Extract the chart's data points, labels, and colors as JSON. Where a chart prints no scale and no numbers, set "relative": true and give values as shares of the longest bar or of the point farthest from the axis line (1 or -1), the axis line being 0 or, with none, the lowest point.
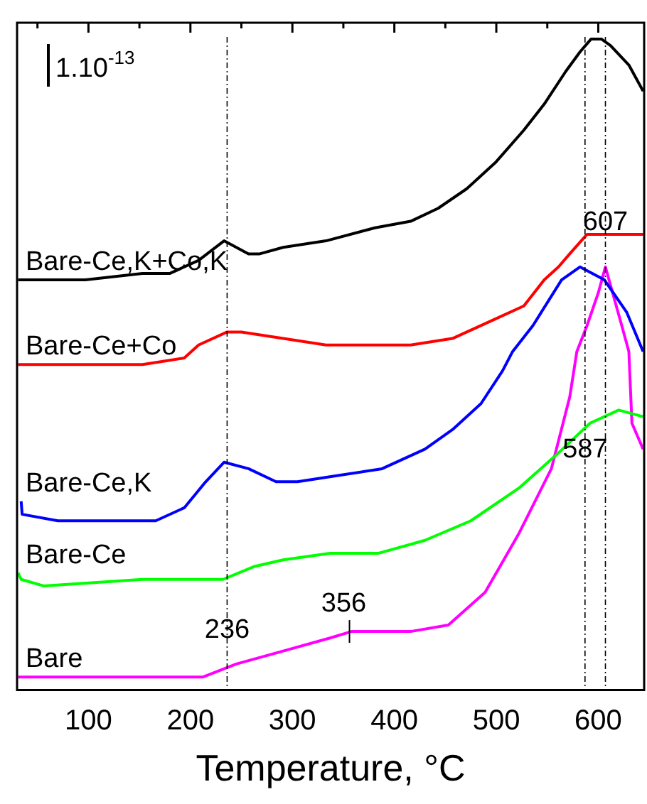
{
  "chart_data": {
    "type": "line",
    "relative": true,
    "xlabel": "Temperature, °C",
    "xlim": [
      30,
      645
    ],
    "xticks": [
      {
        "value": 50,
        "label": null
      },
      100,
      {
        "value": 150,
        "label": null
      },
      200,
      {
        "value": 250,
        "label": null
      },
      300,
      {
        "value": 350,
        "label": null
      },
      400,
      {
        "value": 450,
        "label": null
      },
      500,
      {
        "value": 550,
        "label": null
      },
      600
    ],
    "grid": false,
    "legend": false,
    "marker": "none",
    "line_style": "solid",
    "series": [
      {
        "name": "Bare-Ce,K+Co,K",
        "color": "#000000",
        "x": [
          31,
          42,
          97,
          153,
          180,
          208,
          233,
          257,
          268,
          291,
          333,
          381,
          416,
          443,
          471,
          499,
          527,
          547,
          568,
          582,
          593,
          603,
          612,
          630,
          644
        ],
        "values": [
          0.63,
          0.63,
          0.63,
          0.64,
          0.64,
          0.66,
          0.69,
          0.67,
          0.67,
          0.68,
          0.69,
          0.71,
          0.72,
          0.74,
          0.77,
          0.81,
          0.86,
          0.9,
          0.95,
          0.98,
          1.0,
          1.0,
          0.99,
          0.96,
          0.92
        ]
      },
      {
        "name": "Bare-Ce+Co",
        "color": "#ff0000",
        "x": [
          31,
          153,
          194,
          208,
          236,
          250,
          291,
          333,
          374,
          416,
          457,
          499,
          527,
          547,
          561,
          572,
          589,
          610,
          644
        ],
        "values": [
          0.5,
          0.5,
          0.51,
          0.53,
          0.55,
          0.55,
          0.54,
          0.53,
          0.53,
          0.53,
          0.54,
          0.57,
          0.59,
          0.63,
          0.65,
          0.67,
          0.7,
          0.7,
          0.7
        ]
      },
      {
        "name": "Bare-Ce,K",
        "color": "#0000ff",
        "x": [
          34,
          35,
          70,
          125,
          166,
          194,
          215,
          233,
          257,
          284,
          305,
          347,
          388,
          430,
          457,
          485,
          506,
          516,
          536,
          564,
          582,
          606,
          628,
          644
        ],
        "values": [
          0.29,
          0.27,
          0.26,
          0.26,
          0.26,
          0.28,
          0.32,
          0.35,
          0.34,
          0.32,
          0.32,
          0.33,
          0.34,
          0.37,
          0.4,
          0.44,
          0.49,
          0.52,
          0.56,
          0.63,
          0.65,
          0.63,
          0.58,
          0.52
        ]
      },
      {
        "name": "Bare-Ce",
        "color": "#00ff00",
        "x": [
          31,
          34,
          56,
          153,
          232,
          263,
          291,
          337,
          384,
          430,
          475,
          522,
          558,
          592,
          620,
          644
        ],
        "values": [
          0.18,
          0.17,
          0.16,
          0.17,
          0.17,
          0.19,
          0.2,
          0.21,
          0.21,
          0.23,
          0.26,
          0.31,
          0.36,
          0.41,
          0.43,
          0.42
        ]
      },
      {
        "name": "Bare",
        "color": "#ff00ff",
        "x": [
          31,
          129,
          212,
          245,
          291,
          337,
          358,
          384,
          416,
          453,
          489,
          522,
          554,
          572,
          579,
          589,
          600,
          607,
          623,
          630,
          633,
          644
        ],
        "values": [
          0.02,
          0.02,
          0.02,
          0.04,
          0.06,
          0.08,
          0.09,
          0.09,
          0.09,
          0.1,
          0.15,
          0.24,
          0.34,
          0.45,
          0.52,
          0.56,
          0.61,
          0.65,
          0.56,
          0.52,
          0.41,
          0.37
        ]
      }
    ],
    "ref_lines": [
      {
        "axis": "x",
        "value": 236,
        "label": "236",
        "line_style": "dashed"
      },
      {
        "axis": "x",
        "value": 587,
        "label": "587",
        "line_style": "dashed"
      },
      {
        "axis": "x",
        "value": 607,
        "label": "607",
        "line_style": "dashed"
      }
    ],
    "annotations": [
      "1.10$^{-13}$",
      {
        "text": "356",
        "x": 356,
        "y": 0.09
      }
    ]
  }
}
